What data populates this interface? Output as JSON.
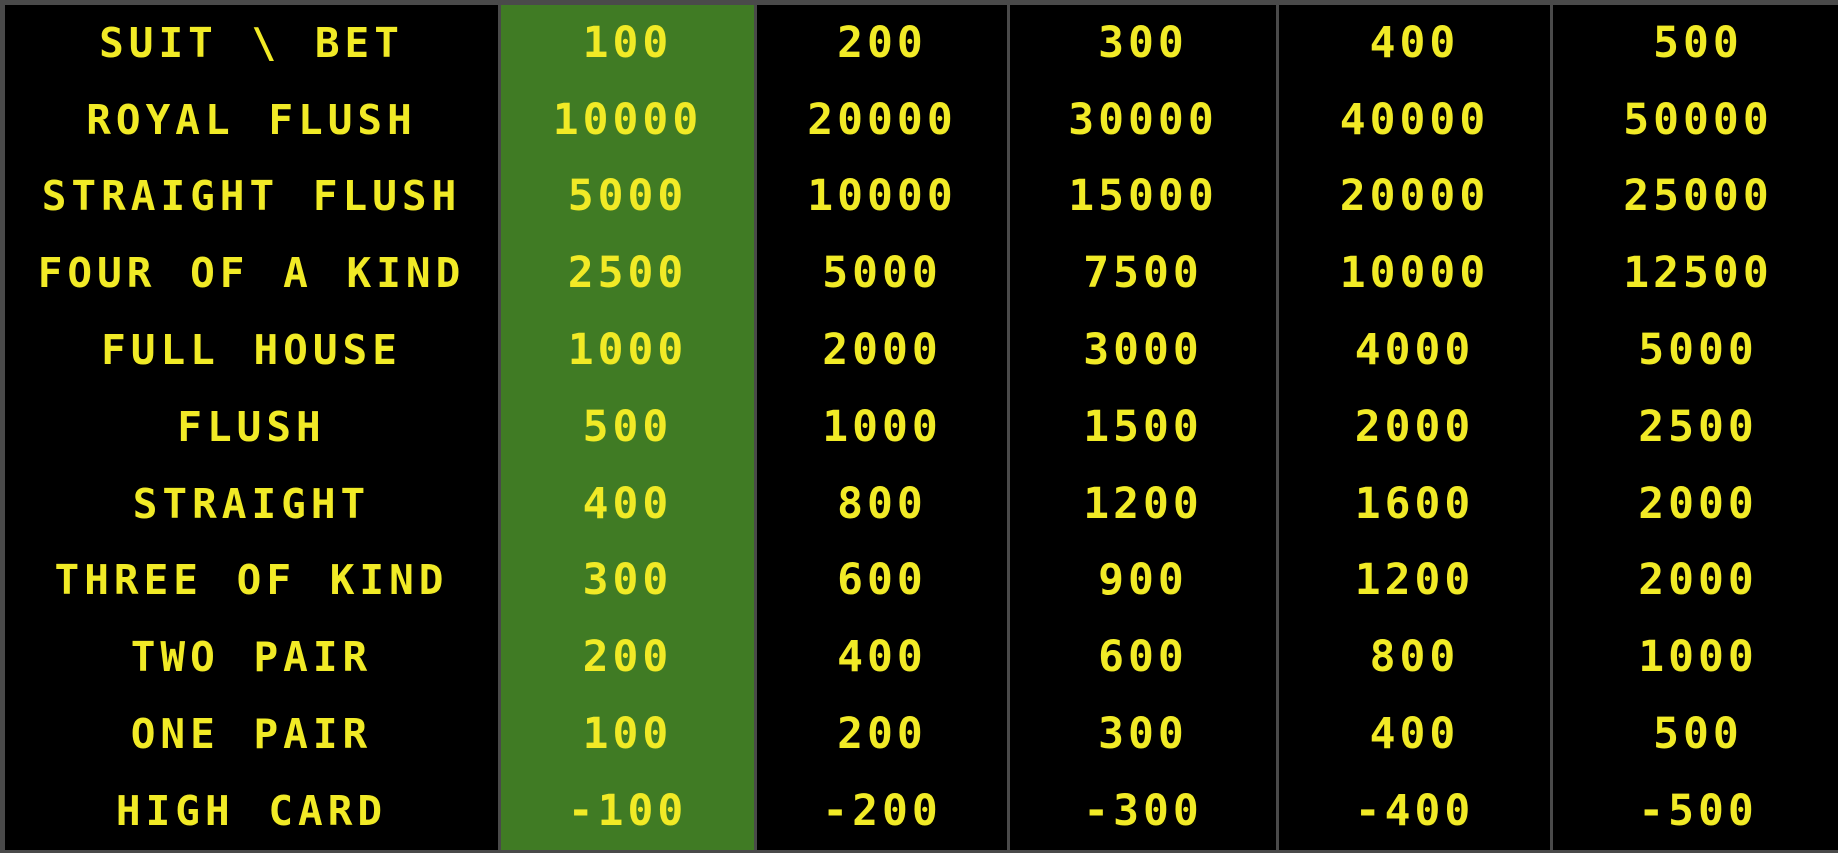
{
  "paytable": {
    "header_label": "SUIT \\ BET",
    "bets": [
      "100",
      "200",
      "300",
      "400",
      "500"
    ],
    "selected_bet": "100",
    "hands": [
      {
        "name": "ROYAL FLUSH",
        "payouts": [
          "10000",
          "20000",
          "30000",
          "40000",
          "50000"
        ]
      },
      {
        "name": "STRAIGHT FLUSH",
        "payouts": [
          "5000",
          "10000",
          "15000",
          "20000",
          "25000"
        ]
      },
      {
        "name": "FOUR OF A KIND",
        "payouts": [
          "2500",
          "5000",
          "7500",
          "10000",
          "12500"
        ]
      },
      {
        "name": "FULL HOUSE",
        "payouts": [
          "1000",
          "2000",
          "3000",
          "4000",
          "5000"
        ]
      },
      {
        "name": "FLUSH",
        "payouts": [
          "500",
          "1000",
          "1500",
          "2000",
          "2500"
        ]
      },
      {
        "name": "STRAIGHT",
        "payouts": [
          "400",
          "800",
          "1200",
          "1600",
          "2000"
        ]
      },
      {
        "name": "THREE OF KIND",
        "payouts": [
          "300",
          "600",
          "900",
          "1200",
          "2000"
        ]
      },
      {
        "name": "TWO PAIR",
        "payouts": [
          "200",
          "400",
          "600",
          "800",
          "1000"
        ]
      },
      {
        "name": "ONE PAIR",
        "payouts": [
          "100",
          "200",
          "300",
          "400",
          "500"
        ]
      },
      {
        "name": "HIGH CARD",
        "payouts": [
          "-100",
          "-200",
          "-300",
          "-400",
          "-500"
        ]
      }
    ]
  },
  "colors": {
    "text": "#f1ea26",
    "background": "#000000",
    "selected_column": "#407b24",
    "grid_lines": "#4a4a4a"
  }
}
